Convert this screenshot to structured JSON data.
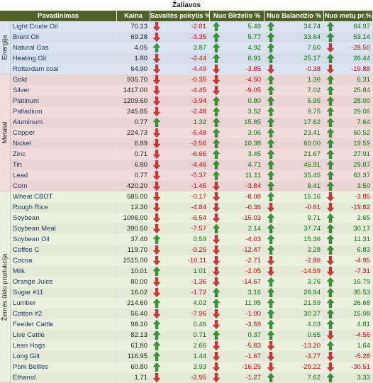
{
  "title": "Žaliavos",
  "headers": [
    "Pavadinimas",
    "Kaina",
    "Savaitės pokytis %",
    "Nuo Birželio %",
    "Nuo Balandžio %",
    "Nuo metų pr.%"
  ],
  "groups": [
    {
      "label": "Energija",
      "from": 0,
      "to": 4
    },
    {
      "label": "Metalai",
      "from": 5,
      "to": 15
    },
    {
      "label": "Žemės ūkio produkcija",
      "from": 16,
      "to": 33
    }
  ],
  "colors": {
    "up": "#2e9e2e",
    "down": "#e03030",
    "header": "#4f6228"
  },
  "rows": [
    {
      "name": "Light Crude Oil",
      "price": "70.13",
      "vals": [
        "-2.81",
        "5.49",
        "34.74",
        "64.97"
      ]
    },
    {
      "name": "Brent Oil",
      "price": "69.28",
      "vals": [
        "-3.35",
        "5.77",
        "33.64",
        "53.14"
      ]
    },
    {
      "name": "Natural Gas",
      "price": "4.05",
      "vals": [
        "3.87",
        "4.92",
        "7.60",
        "-28.50"
      ]
    },
    {
      "name": "Heating Oil",
      "price": "1.80",
      "vals": [
        "-2.44",
        "6.91",
        "25.17",
        "26.44"
      ]
    },
    {
      "name": "Rotterdam coal",
      "price": "64.90",
      "vals": [
        "-4.49",
        "-3.85",
        "-0.38",
        "-19.88"
      ]
    },
    {
      "name": "Gold",
      "price": "935.70",
      "vals": [
        "-0.35",
        "-4.50",
        "1.36",
        "6.31"
      ]
    },
    {
      "name": "Silver",
      "price": "1417.00",
      "vals": [
        "-4.45",
        "-9.05",
        "7.02",
        "25.84"
      ]
    },
    {
      "name": "Platinum",
      "price": "1209.60",
      "vals": [
        "-3.94",
        "0.80",
        "5.95",
        "28.00"
      ]
    },
    {
      "name": "Palladium",
      "price": "245.85",
      "vals": [
        "-2.48",
        "3.52",
        "9.75",
        "29.06"
      ]
    },
    {
      "name": "Aluminum",
      "price": "0.77",
      "vals": [
        "1.32",
        "15.85",
        "17.62",
        "7.64"
      ]
    },
    {
      "name": "Copper",
      "price": "224.73",
      "vals": [
        "-5.48",
        "3.06",
        "23.41",
        "60.52"
      ]
    },
    {
      "name": "Nickel",
      "price": "6.89",
      "vals": [
        "-2.56",
        "10.38",
        "60.00",
        "19.59"
      ]
    },
    {
      "name": "Zinc",
      "price": "0.71",
      "vals": [
        "-6.66",
        "3.45",
        "21.67",
        "27.91"
      ]
    },
    {
      "name": "Tin",
      "price": "6.80",
      "vals": [
        "-4.46",
        "4.71",
        "46.91",
        "29.87"
      ]
    },
    {
      "name": "Lead",
      "price": "0.77",
      "vals": [
        "-5.37",
        "11.11",
        "35.45",
        "63.37"
      ]
    },
    {
      "name": "Corn",
      "price": "420.20",
      "vals": [
        "-1.45",
        "-3.84",
        "8.41",
        "3.50"
      ]
    },
    {
      "name": "Wheat CBOT",
      "price": "585.00",
      "vals": [
        "-0.17",
        "-8.08",
        "15.16",
        "-3.85"
      ]
    },
    {
      "name": "Rough Rice",
      "price": "12.30",
      "vals": [
        "-4.84",
        "-0.36",
        "-0.61",
        "-19.82"
      ]
    },
    {
      "name": "Soybean",
      "price": "1006.00",
      "vals": [
        "-6.54",
        "-15.03",
        "9.71",
        "2.65"
      ]
    },
    {
      "name": "Soybean Meal",
      "price": "390.50",
      "vals": [
        "-7.57",
        "2.14",
        "37.74",
        "30.17"
      ]
    },
    {
      "name": "Soybean Oil",
      "price": "37.40",
      "vals": [
        "0.59",
        "-4.03",
        "15.36",
        "11.31"
      ]
    },
    {
      "name": "Coffee C",
      "price": "119.70",
      "vals": [
        "-9.25",
        "-12.47",
        "3.28",
        "6.83"
      ]
    },
    {
      "name": "Cocoa",
      "price": "2515.00",
      "vals": [
        "-10.11",
        "-2.71",
        "-2.86",
        "-4.95"
      ]
    },
    {
      "name": "Milk",
      "price": "10.01",
      "vals": [
        "1.01",
        "-2.05",
        "-14.59",
        "-7.31"
      ]
    },
    {
      "name": "Orange Juice",
      "price": "80.00",
      "vals": [
        "-1.36",
        "-14.67",
        "3.76",
        "16.79"
      ]
    },
    {
      "name": "Sugar #11",
      "price": "16.02",
      "vals": [
        "-1.72",
        "3.16",
        "26.94",
        "35.53"
      ]
    },
    {
      "name": "Lumber",
      "price": "214.60",
      "vals": [
        "4.02",
        "11.95",
        "21.59",
        "26.68"
      ]
    },
    {
      "name": "Cotton #2",
      "price": "56.40",
      "vals": [
        "-7.96",
        "-1.00",
        "30.37",
        "15.08"
      ]
    },
    {
      "name": "Feeder Cattle",
      "price": "98.10",
      "vals": [
        "0.46",
        "-3.59",
        "4.03",
        "4.81"
      ]
    },
    {
      "name": "Live Cattle",
      "price": "82.13",
      "vals": [
        "0.71",
        "0.37",
        "0.65",
        "-4.56"
      ]
    },
    {
      "name": "Lean Hogs",
      "price": "61.80",
      "vals": [
        "2.66",
        "-5.83",
        "-13.20",
        "1.64"
      ]
    },
    {
      "name": "Long Gilt",
      "price": "116.95",
      "vals": [
        "1.44",
        "-1.67",
        "-3.77",
        "-5.28"
      ]
    },
    {
      "name": "Pork Bellies",
      "price": "60.80",
      "vals": [
        "3.93",
        "-16.25",
        "-29.22",
        "-30.51"
      ]
    },
    {
      "name": "Ethanol",
      "price": "1.71",
      "vals": [
        "-2.95",
        "-1.27",
        "7.62",
        "3.33"
      ]
    }
  ]
}
